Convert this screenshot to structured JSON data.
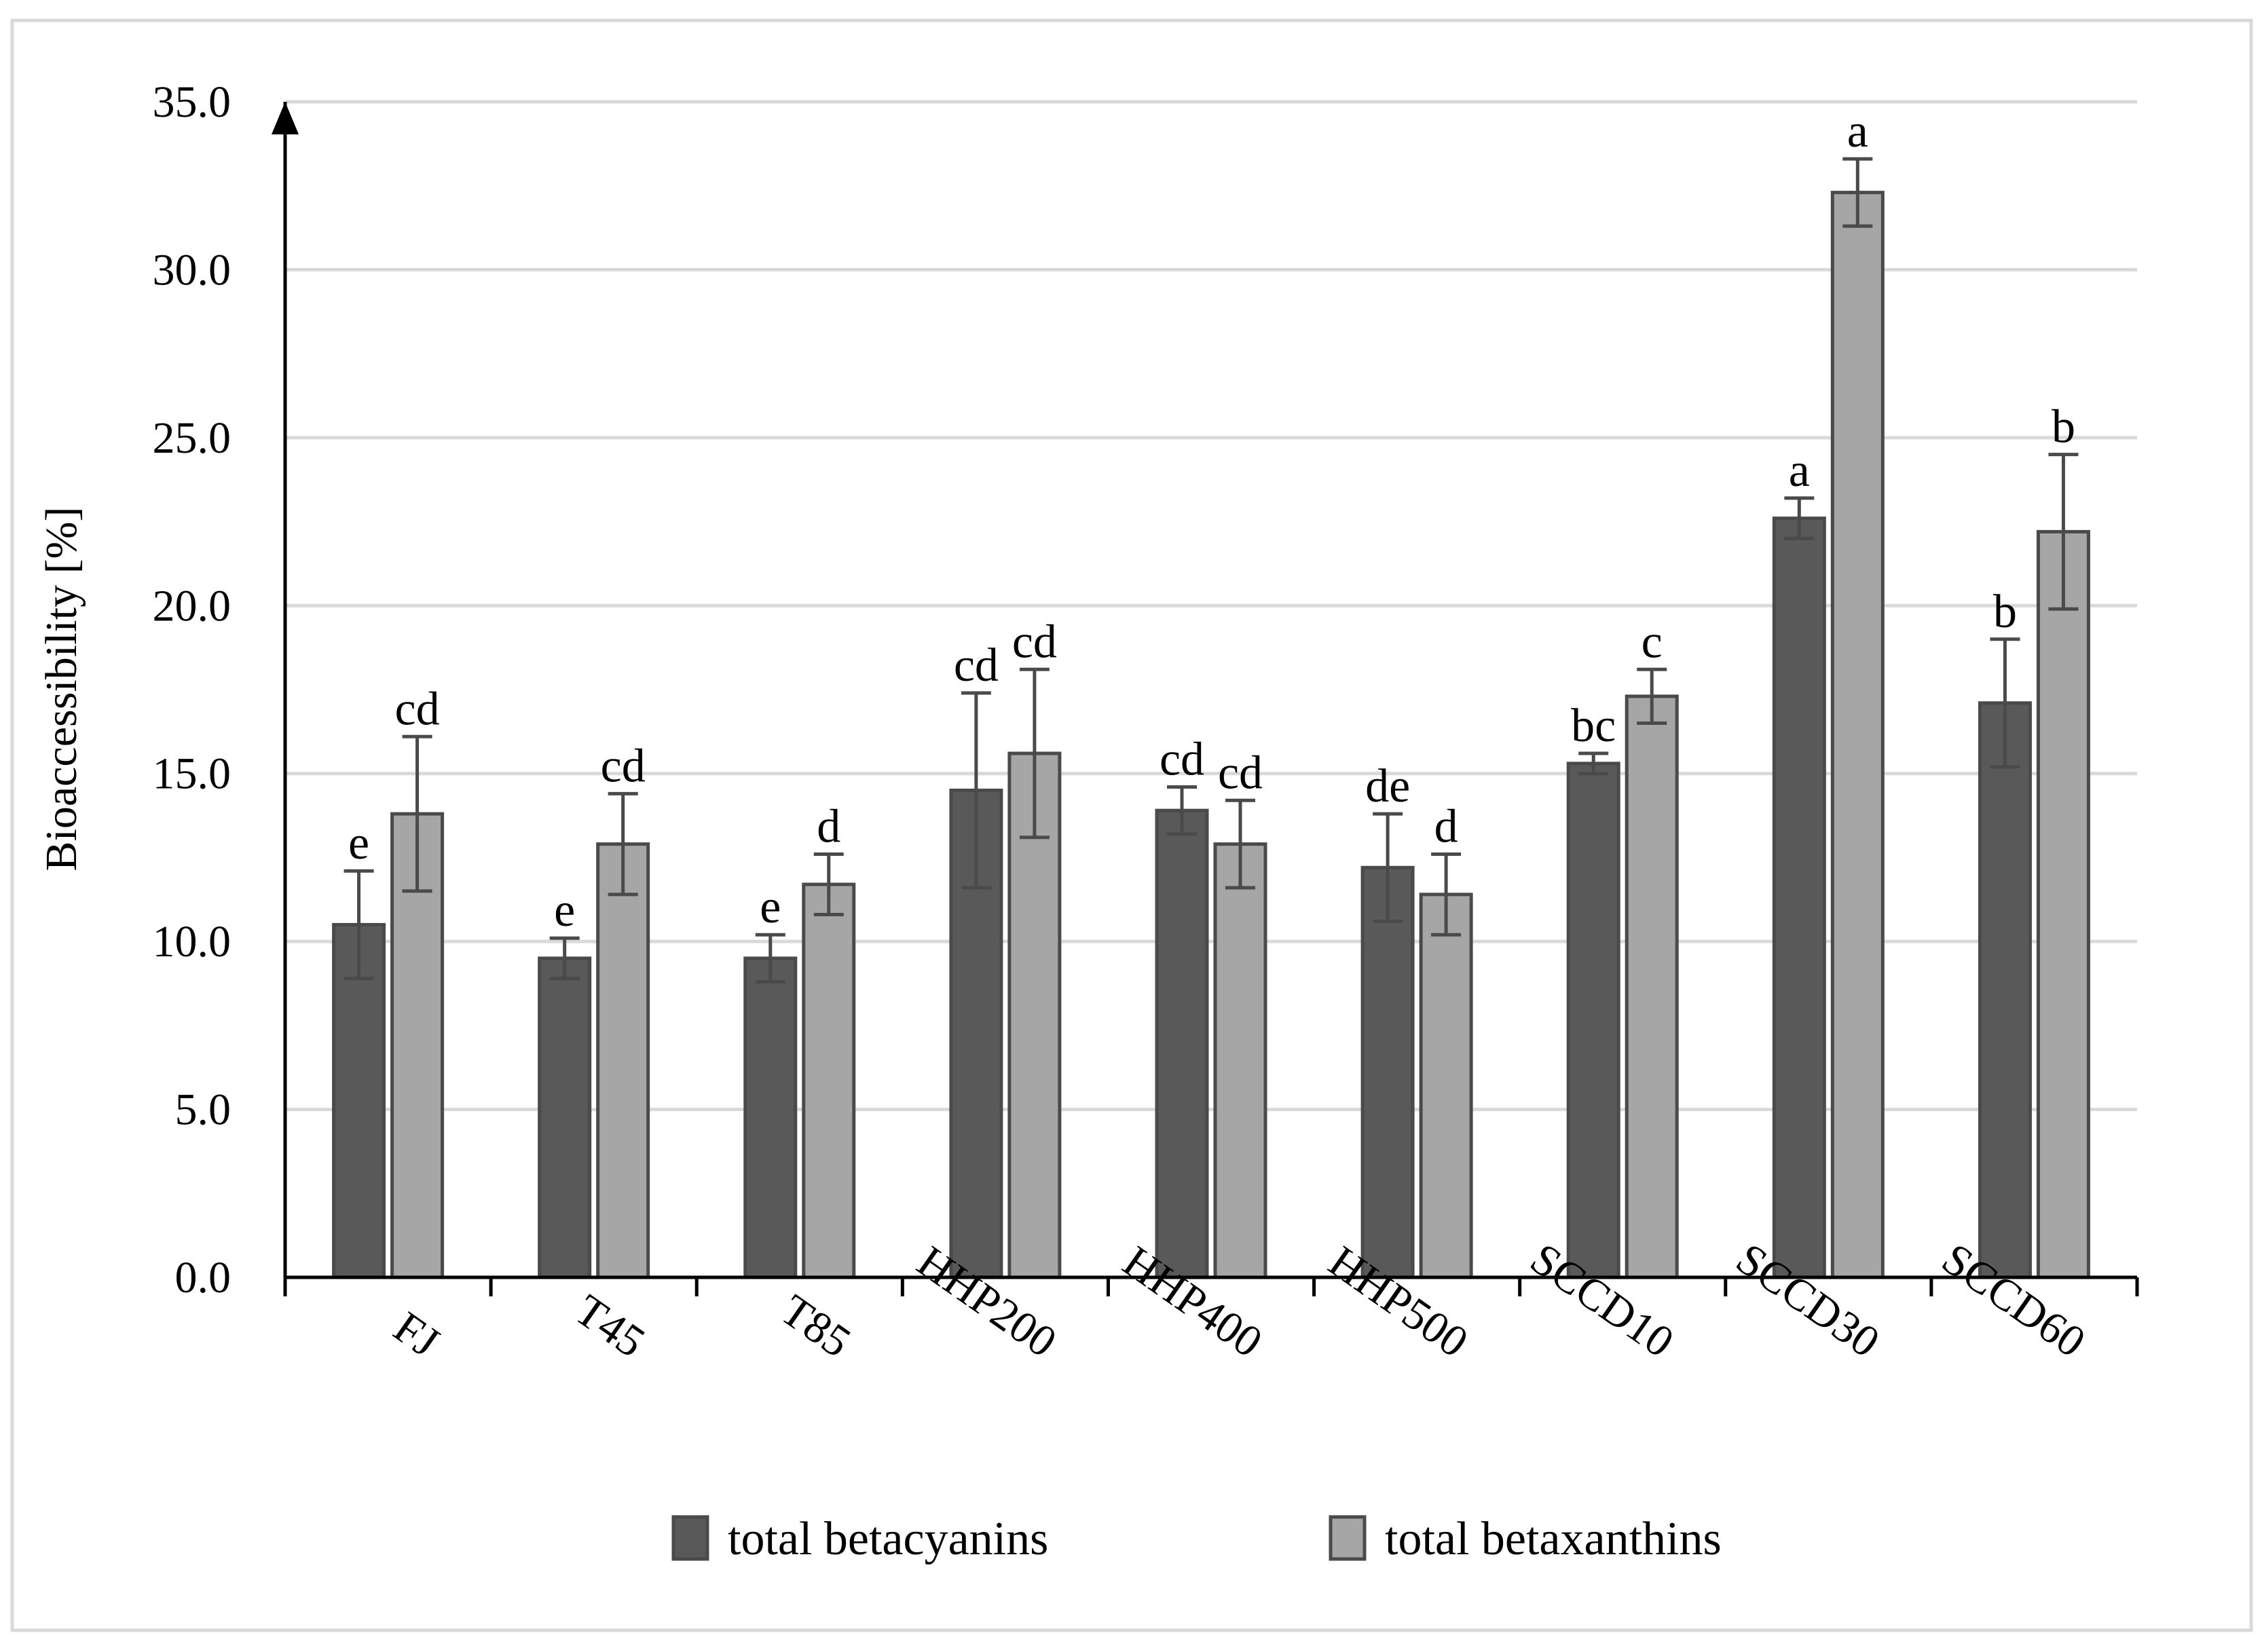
{
  "chart_data": {
    "type": "bar",
    "ylabel": "Bioaccessibility [%]",
    "ylim": [
      0,
      35
    ],
    "ytick_values": [
      0,
      5,
      10,
      15,
      20,
      25,
      30,
      35
    ],
    "ytick_labels": [
      "0.0",
      "5.0",
      "10.0",
      "15.0",
      "20.0",
      "25.0",
      "30.0",
      "35.0"
    ],
    "grid": true,
    "legend_position": "bottom",
    "categories": [
      "FJ",
      "T45",
      "T85",
      "HHP200",
      "HHP400",
      "HHP500",
      "SCCD10",
      "SCCD30",
      "SCCD60"
    ],
    "series": [
      {
        "name": "total betacyanins",
        "color": "#595959",
        "values": [
          10.5,
          9.5,
          9.5,
          14.5,
          13.9,
          12.2,
          15.3,
          22.6,
          17.1
        ],
        "errors": [
          1.6,
          0.6,
          0.7,
          2.9,
          0.7,
          1.6,
          0.3,
          0.6,
          1.9
        ],
        "labels": [
          "e",
          "e",
          "e",
          "cd",
          "cd",
          "de",
          "bc",
          "a",
          "b"
        ]
      },
      {
        "name": "total betaxanthins",
        "color": "#a6a6a6",
        "values": [
          13.8,
          12.9,
          11.7,
          15.6,
          12.9,
          11.4,
          17.3,
          32.3,
          22.2
        ],
        "errors": [
          2.3,
          1.5,
          0.9,
          2.5,
          1.3,
          1.2,
          0.8,
          1.0,
          2.3
        ],
        "labels": [
          "cd",
          "cd",
          "d",
          "cd",
          "cd",
          "d",
          "c",
          "a",
          "b"
        ]
      }
    ]
  }
}
